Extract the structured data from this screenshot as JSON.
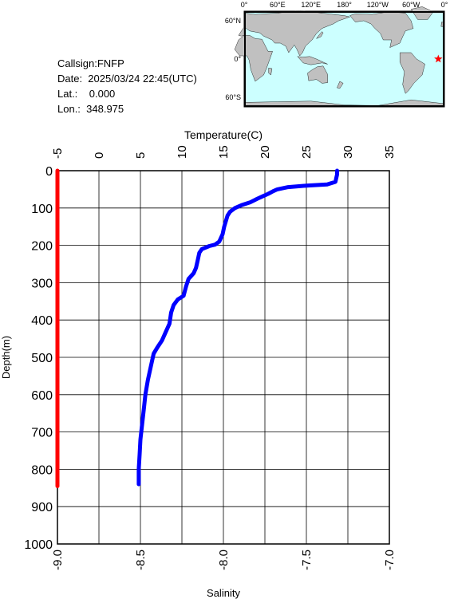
{
  "station": {
    "callsign": "Callsign:FNFP",
    "date": "Date:  2025/03/24 22:45(UTC)",
    "lat": "Lat.:    0.000",
    "lon": "Lon.:  348.975"
  },
  "map": {
    "top_ticks": [
      "0°",
      "60°E",
      "120°E",
      "180°",
      "120°W",
      "60°W",
      "0°"
    ],
    "lat_ticks": [
      "60°N",
      "0°",
      "60°S"
    ],
    "ocean_color": "#ccffff",
    "land_color": "#c0c0c0",
    "marker": {
      "symbol": "star",
      "color": "#ff0000",
      "lon": 348.975,
      "lat": 0.0
    }
  },
  "chart_data": {
    "type": "line",
    "title": "",
    "top_axis": {
      "label": "Temperature(C)",
      "range": [
        -5,
        35
      ],
      "ticks": [
        "-5",
        "0",
        "5",
        "10",
        "15",
        "20",
        "25",
        "30",
        "35"
      ]
    },
    "bottom_axis": {
      "label": "Salinity",
      "range": [
        -9.0,
        -7.0
      ],
      "ticks": [
        "-9.0",
        "-8.5",
        "-8.0",
        "-7.5",
        "-7.0"
      ]
    },
    "y_axis": {
      "label": "Depth(m)",
      "range": [
        0,
        1000
      ],
      "inverted": true,
      "ticks": [
        "0",
        "100",
        "200",
        "300",
        "400",
        "500",
        "600",
        "700",
        "800",
        "900",
        "1000"
      ]
    },
    "grid": true,
    "series": [
      {
        "name": "Temperature",
        "axis": "top",
        "color": "#0000ff",
        "points": [
          [
            28.7,
            0
          ],
          [
            28.7,
            10
          ],
          [
            28.6,
            20
          ],
          [
            28.5,
            30
          ],
          [
            27.5,
            37
          ],
          [
            25.0,
            40
          ],
          [
            22.8,
            44
          ],
          [
            21.5,
            50
          ],
          [
            21.0,
            55
          ],
          [
            20.4,
            62
          ],
          [
            19.8,
            68
          ],
          [
            19.1,
            75
          ],
          [
            18.2,
            85
          ],
          [
            17.2,
            92
          ],
          [
            16.4,
            100
          ],
          [
            15.8,
            110
          ],
          [
            15.5,
            120
          ],
          [
            15.3,
            135
          ],
          [
            15.1,
            150
          ],
          [
            14.9,
            170
          ],
          [
            14.5,
            190
          ],
          [
            14.0,
            198
          ],
          [
            13.3,
            202
          ],
          [
            12.4,
            210
          ],
          [
            12.1,
            220
          ],
          [
            11.9,
            240
          ],
          [
            11.7,
            260
          ],
          [
            11.4,
            275
          ],
          [
            10.8,
            290
          ],
          [
            10.5,
            310
          ],
          [
            10.2,
            335
          ],
          [
            9.5,
            345
          ],
          [
            9.0,
            360
          ],
          [
            8.7,
            380
          ],
          [
            8.5,
            410
          ],
          [
            8.1,
            430
          ],
          [
            7.6,
            455
          ],
          [
            7.0,
            475
          ],
          [
            6.6,
            490
          ],
          [
            6.3,
            520
          ],
          [
            5.9,
            560
          ],
          [
            5.6,
            600
          ],
          [
            5.4,
            640
          ],
          [
            5.2,
            680
          ],
          [
            5.0,
            720
          ],
          [
            4.9,
            760
          ],
          [
            4.8,
            800
          ],
          [
            4.8,
            840
          ]
        ]
      },
      {
        "name": "Salinity",
        "axis": "bottom",
        "color": "#ff0000",
        "points": [
          [
            -9.0,
            0
          ],
          [
            -9.0,
            200
          ],
          [
            -9.0,
            400
          ],
          [
            -9.0,
            600
          ],
          [
            -9.0,
            845
          ]
        ]
      }
    ]
  }
}
